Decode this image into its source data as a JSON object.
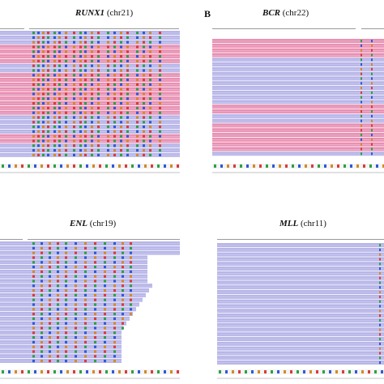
{
  "panels": [
    {
      "id": "runx1",
      "gene": "RUNX1",
      "chrom": "(chr21)",
      "letter": "",
      "colored_letters": true,
      "pink_rows": [
        3,
        4,
        5,
        6,
        9,
        10,
        11,
        12,
        13,
        14,
        15,
        16,
        17,
        22,
        23
      ],
      "mismatch_cols": [
        40,
        46,
        52,
        58,
        66,
        72,
        80,
        90,
        98,
        104,
        112,
        120,
        132,
        140,
        148,
        156,
        168,
        176,
        184,
        196
      ]
    },
    {
      "id": "bcr",
      "gene": "BCR",
      "chrom": "(chr22)",
      "letter": "B",
      "colored_letters": false,
      "pink_rows": [
        0,
        1,
        2,
        3,
        14,
        15,
        18,
        19,
        20,
        21,
        22,
        23
      ],
      "mismatch_cols": [
        183,
        196
      ]
    },
    {
      "id": "enl",
      "gene": "ENL",
      "chrom": "(chr19)",
      "letter": "",
      "colored_letters": true,
      "pink_rows": [],
      "mismatch_cols": [
        40,
        50,
        60,
        70,
        80,
        92,
        104,
        116,
        128,
        140,
        150,
        160
      ]
    },
    {
      "id": "mll",
      "gene": "MLL",
      "chrom": "(chr11)",
      "letter": "",
      "colored_letters": false,
      "pink_rows": [],
      "mismatch_cols": [
        200
      ]
    }
  ],
  "colors": {
    "read": "#b8b6e8",
    "read_line": "#d6d4f4",
    "pink": "#ec8fb0",
    "base_a": "#2ea043",
    "base_c": "#2f59d6",
    "base_g": "#d4892a",
    "base_t": "#d93b3b"
  }
}
